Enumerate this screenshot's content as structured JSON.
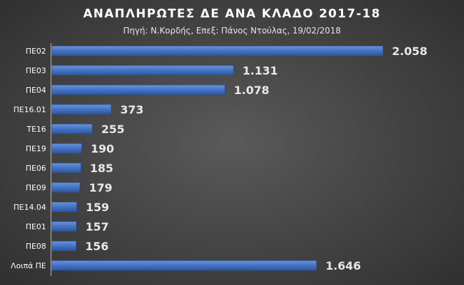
{
  "chart_data": {
    "type": "bar",
    "orientation": "horizontal",
    "title": "ΑΝΑΠΛΗΡΩΤΕΣ  ΔΕ ΑΝΑ ΚΛΑΔΟ 2017-18",
    "subtitle": "Πηγή: Ν.Κορδής, Επεξ: Πάνος Ντούλας, 19/02/2018",
    "categories": [
      "ΠΕ02",
      "ΠΕ03",
      "ΠΕ04",
      "ΠΕ16.01",
      "ΤΕ16",
      "ΠΕ19",
      "ΠΕ06",
      "ΠΕ09",
      "ΠΕ14.04",
      "ΠΕ01",
      "ΠΕ08",
      "Λοιπά ΠΕ"
    ],
    "values": [
      2058,
      1131,
      1078,
      373,
      255,
      190,
      185,
      179,
      159,
      157,
      156,
      1646
    ],
    "value_labels": [
      "2.058",
      "1.131",
      "1.078",
      "373",
      "255",
      "190",
      "185",
      "179",
      "159",
      "157",
      "156",
      "1.646"
    ],
    "xlim": [
      0,
      2058
    ],
    "grid": false,
    "legend": "none",
    "bar_color": "#4472c4"
  }
}
